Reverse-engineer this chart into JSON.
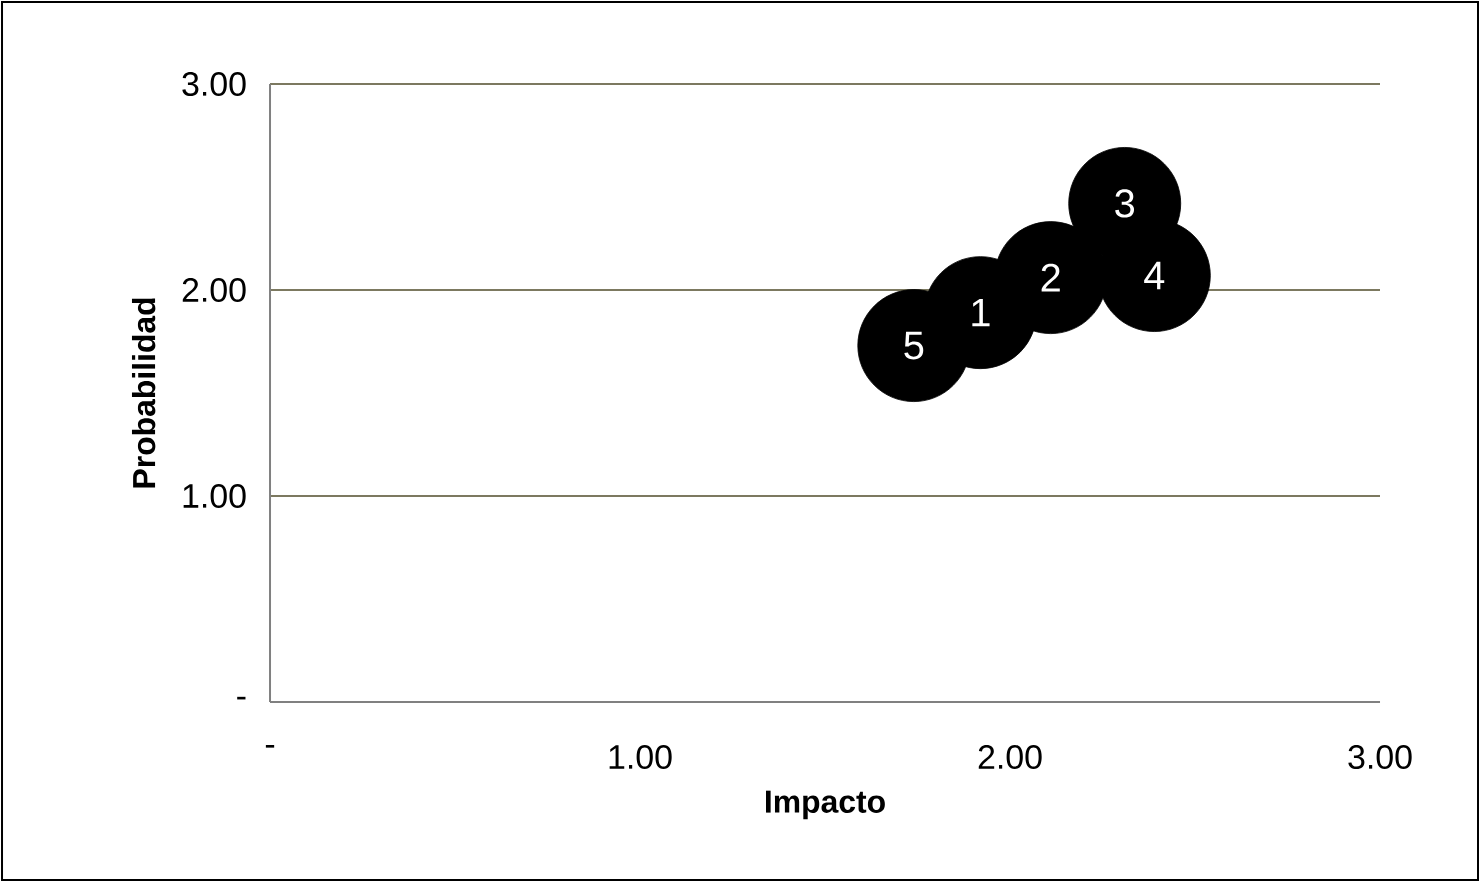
{
  "chart_data": {
    "type": "bubble",
    "xlabel": "Impacto",
    "ylabel": "Probabilidad",
    "xlim": [
      0,
      3
    ],
    "ylim": [
      0,
      3
    ],
    "xticks": [
      {
        "value": 0,
        "label": "-"
      },
      {
        "value": 1,
        "label": "1.00"
      },
      {
        "value": 2,
        "label": "2.00"
      },
      {
        "value": 3,
        "label": "3.00"
      }
    ],
    "yticks": [
      {
        "value": 0,
        "label": "-"
      },
      {
        "value": 1,
        "label": "1.00"
      },
      {
        "value": 2,
        "label": "2.00"
      },
      {
        "value": 3,
        "label": "3.00"
      }
    ],
    "grid": "y",
    "series": [
      {
        "color": "#000000",
        "x": [
          1.74,
          1.92,
          2.11,
          2.31,
          2.39
        ],
        "values": [
          1.73,
          1.89,
          2.06,
          2.42,
          2.07
        ],
        "sizes": [
          1,
          1,
          1,
          1,
          1
        ]
      }
    ],
    "annotations": [
      {
        "text": "5",
        "x": 1.74,
        "y": 1.73
      },
      {
        "text": "1",
        "x": 1.92,
        "y": 1.89
      },
      {
        "text": "2",
        "x": 2.11,
        "y": 2.06
      },
      {
        "text": "3",
        "x": 2.31,
        "y": 2.42
      },
      {
        "text": "4",
        "x": 2.39,
        "y": 2.07
      }
    ]
  }
}
